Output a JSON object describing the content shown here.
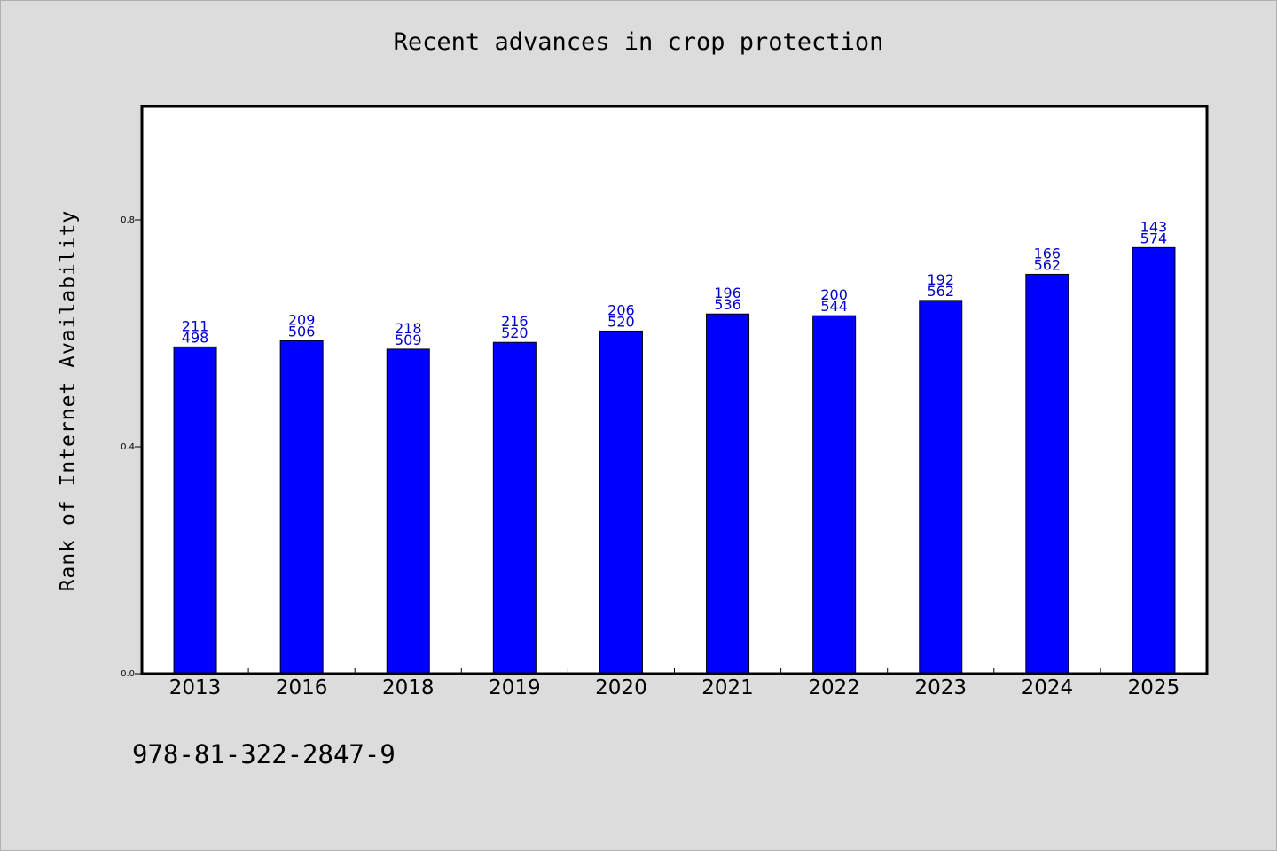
{
  "chart_data": {
    "type": "bar",
    "title": "Recent advances in crop protection",
    "xlabel": "",
    "ylabel": "Rank of Internet Availability",
    "categories": [
      "2013",
      "2016",
      "2018",
      "2019",
      "2020",
      "2021",
      "2022",
      "2023",
      "2024",
      "2025"
    ],
    "values": [
      0.576,
      0.587,
      0.572,
      0.584,
      0.604,
      0.634,
      0.631,
      0.658,
      0.704,
      0.751
    ],
    "bar_labels_top": [
      "211",
      "209",
      "218",
      "216",
      "206",
      "196",
      "200",
      "192",
      "166",
      "143"
    ],
    "bar_labels_bottom": [
      "498",
      "506",
      "509",
      "520",
      "520",
      "536",
      "544",
      "562",
      "562",
      "574"
    ],
    "yticks": [
      "0.0",
      "0.4",
      "0.8"
    ],
    "ylim": [
      0,
      1.0
    ],
    "grid": false,
    "legend": false,
    "bar_color": "#0000ff",
    "label_color": "#0000cc",
    "plot_background": "#ffffff",
    "page_background": "#dcdcdc"
  },
  "footer": {
    "isbn": "978-81-322-2847-9"
  }
}
